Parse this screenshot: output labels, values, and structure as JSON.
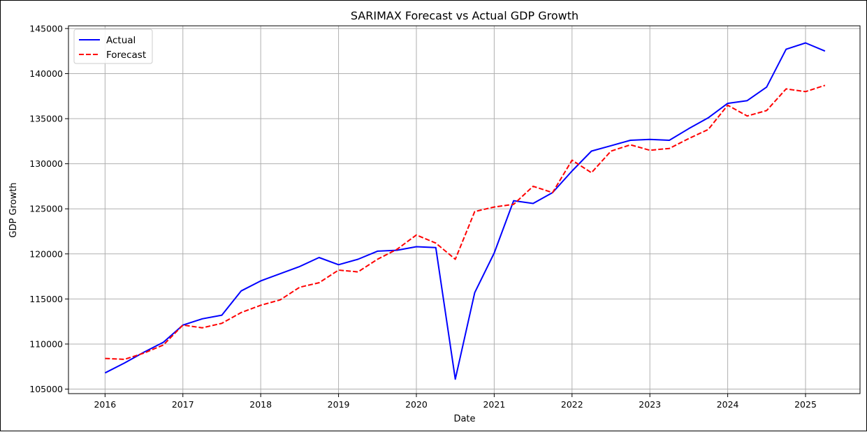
{
  "chart_data": {
    "type": "line",
    "title": "SARIMAX Forecast vs Actual GDP Growth",
    "xlabel": "Date",
    "ylabel": "GDP Growth",
    "xlim": [
      2015.53,
      2025.7
    ],
    "ylim": [
      104500,
      145300
    ],
    "x_ticks": [
      2016,
      2017,
      2018,
      2019,
      2020,
      2021,
      2022,
      2023,
      2024,
      2025
    ],
    "x_tick_labels": [
      "2016",
      "2017",
      "2018",
      "2019",
      "2020",
      "2021",
      "2022",
      "2023",
      "2024",
      "2025"
    ],
    "y_ticks": [
      105000,
      110000,
      115000,
      120000,
      125000,
      130000,
      135000,
      140000,
      145000
    ],
    "y_tick_labels": [
      "105000",
      "110000",
      "115000",
      "120000",
      "125000",
      "130000",
      "135000",
      "140000",
      "145000"
    ],
    "grid": true,
    "legend": "upper-left",
    "x": [
      2016.0,
      2016.25,
      2016.5,
      2016.75,
      2017.0,
      2017.25,
      2017.5,
      2017.75,
      2018.0,
      2018.25,
      2018.5,
      2018.75,
      2019.0,
      2019.25,
      2019.5,
      2019.75,
      2020.0,
      2020.25,
      2020.5,
      2020.75,
      2021.0,
      2021.25,
      2021.5,
      2021.75,
      2022.0,
      2022.25,
      2022.5,
      2022.75,
      2023.0,
      2023.25,
      2023.5,
      2023.75,
      2024.0,
      2024.25,
      2024.5,
      2024.75,
      2025.0,
      2025.25
    ],
    "series": [
      {
        "name": "Actual",
        "color": "#0000ff",
        "style": "solid",
        "values": [
          106800,
          107900,
          109100,
          110200,
          112100,
          112800,
          113200,
          115900,
          117000,
          117800,
          118600,
          119600,
          118800,
          119400,
          120300,
          120400,
          120800,
          120700,
          106100,
          115700,
          120100,
          125900,
          125600,
          126800,
          129200,
          131400,
          132000,
          132600,
          132700,
          132600,
          133900,
          135100,
          136700,
          137000,
          138500,
          142700,
          143400,
          142500
        ]
      },
      {
        "name": "Forecast",
        "color": "#ff0000",
        "style": "dashed",
        "values": [
          108400,
          108300,
          109000,
          109900,
          112100,
          111800,
          112300,
          113500,
          114300,
          114900,
          116300,
          116800,
          118200,
          118000,
          119400,
          120500,
          122100,
          121200,
          119400,
          124700,
          125200,
          125500,
          127500,
          126800,
          130400,
          129000,
          131400,
          132100,
          131500,
          131700,
          132800,
          133800,
          136500,
          135300,
          135900,
          138300,
          138000,
          138700
        ]
      }
    ]
  }
}
